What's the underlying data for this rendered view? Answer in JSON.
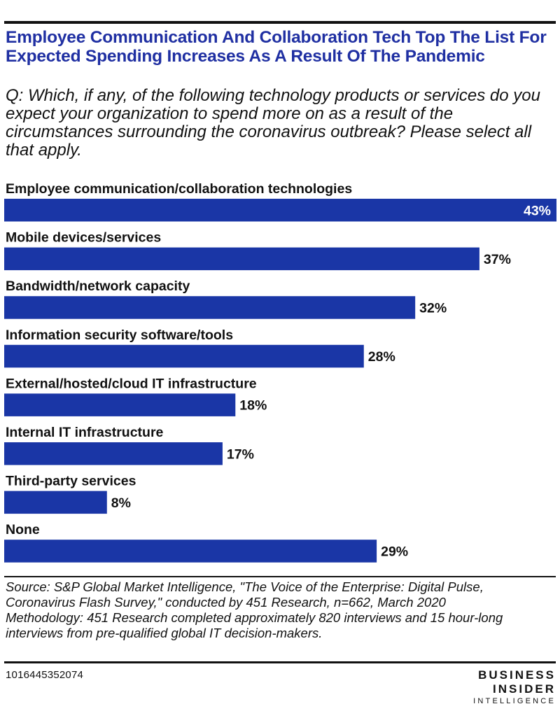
{
  "header": {
    "title": "Employee Communication And Collaboration Tech Top The List For Expected Spending Increases As A Result Of The Pandemic",
    "question": "Q: Which, if any, of the following technology products or services do you expect your organization to spend more on as a result of the circumstances surrounding the coronavirus outbreak? Please select all that apply."
  },
  "chart_data": {
    "type": "bar",
    "orientation": "horizontal",
    "categories": [
      "Employee communication/collaboration technologies",
      "Mobile devices/services",
      "Bandwidth/network capacity",
      "Information security software/tools",
      "External/hosted/cloud IT infrastructure",
      "Internal IT infrastructure",
      "Third-party services",
      "None"
    ],
    "values": [
      43,
      37,
      32,
      28,
      18,
      17,
      8,
      29
    ],
    "value_labels": [
      "43%",
      "37%",
      "32%",
      "28%",
      "18%",
      "17%",
      "8%",
      "29%"
    ],
    "bar_color": "#1a36a6",
    "grid": false,
    "legend": "none"
  },
  "footer": {
    "source": "Source: S&P Global Market Intelligence, \"The Voice of the Enterprise: Digital Pulse, Coronavirus Flash Survey,\" conducted by 451 Research, n=662, March 2020",
    "methodology": "Methodology: 451 Research completed approximately 820 interviews and 15 hour-long interviews from pre-qualified global IT decision-makers.",
    "chart_id": "1016445352074",
    "logo": {
      "line1": "BUSINESS",
      "line2": "INSIDER",
      "line3": "INTELLIGENCE"
    }
  },
  "colors": {
    "title": "#1f2fa2",
    "bar": "#1a36a6",
    "text": "#111111"
  }
}
